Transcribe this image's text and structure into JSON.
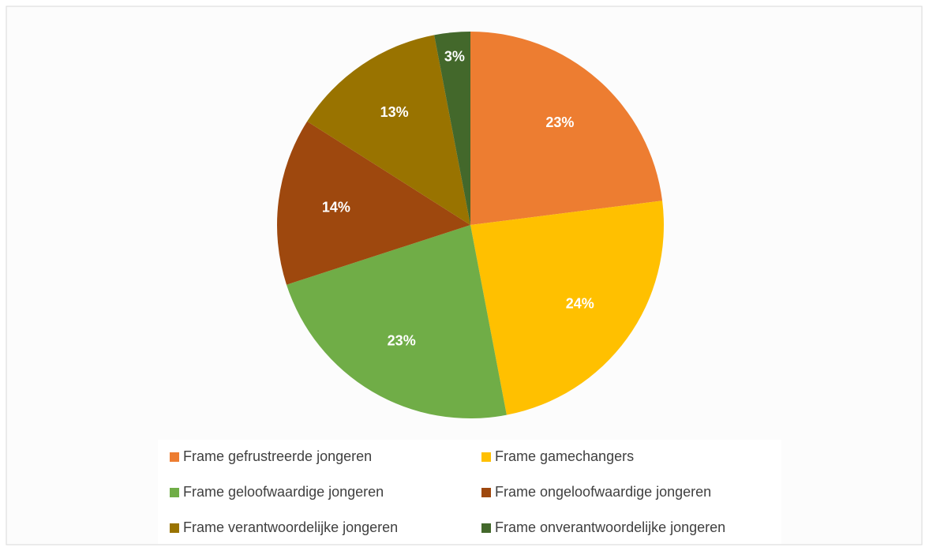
{
  "chart_data": {
    "type": "pie",
    "categories": [
      "Frame gefrustreerde jongeren",
      "Frame gamechangers",
      "Frame geloofwaardige jongeren",
      "Frame ongeloofwaardige jongeren",
      "Frame verantwoordelijke jongeren",
      "Frame onverantwoordelijke jongeren"
    ],
    "values": [
      23,
      24,
      23,
      14,
      13,
      3
    ],
    "value_labels": [
      "23%",
      "24%",
      "23%",
      "14%",
      "13%",
      "3%"
    ],
    "colors": [
      "#ED7D31",
      "#FFC000",
      "#70AD47",
      "#9E480E",
      "#997300",
      "#43682B"
    ],
    "legend": "bottom"
  }
}
